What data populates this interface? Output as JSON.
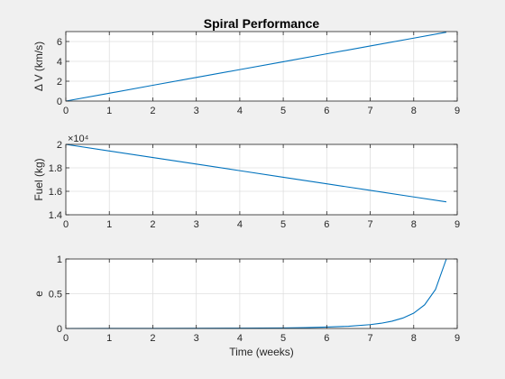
{
  "figure": {
    "background_color": "#f0f0f0",
    "axes_color": "#ffffff",
    "line_color": "#0072bd",
    "grid_color": "#dfdfdf"
  },
  "chart_data": [
    {
      "type": "line",
      "title": "Spiral Performance",
      "xlabel": "",
      "ylabel": "Δ V (km/s)",
      "xlim": [
        0,
        9
      ],
      "ylim": [
        0,
        7
      ],
      "xticks": [
        0,
        1,
        2,
        3,
        4,
        5,
        6,
        7,
        8,
        9
      ],
      "yticks": [
        0,
        2,
        4,
        6
      ],
      "ytick_labels": [
        "0",
        "2",
        "4",
        "6"
      ],
      "exponent_label": "",
      "grid": true,
      "series": [
        {
          "x": [
            0,
            1,
            2,
            3,
            4,
            5,
            6,
            7,
            8,
            8.75
          ],
          "y": [
            0,
            0.79,
            1.59,
            2.38,
            3.17,
            3.96,
            4.76,
            5.55,
            6.34,
            6.94
          ]
        }
      ]
    },
    {
      "type": "line",
      "title": "",
      "xlabel": "",
      "ylabel": "Fuel (kg)",
      "xlim": [
        0,
        9
      ],
      "ylim": [
        1.4,
        2.0
      ],
      "xticks": [
        0,
        1,
        2,
        3,
        4,
        5,
        6,
        7,
        8,
        9
      ],
      "yticks": [
        1.4,
        1.6,
        1.8,
        2.0
      ],
      "ytick_labels": [
        "1.4",
        "1.6",
        "1.8",
        "2"
      ],
      "exponent_label": "×10⁴",
      "grid": true,
      "series": [
        {
          "x": [
            0,
            1,
            2,
            3,
            4,
            5,
            6,
            7,
            8,
            8.75
          ],
          "y": [
            2.0,
            1.944,
            1.888,
            1.832,
            1.776,
            1.72,
            1.664,
            1.608,
            1.552,
            1.51
          ]
        }
      ]
    },
    {
      "type": "line",
      "title": "",
      "xlabel": "Time (weeks)",
      "ylabel": "e",
      "xlim": [
        0,
        9
      ],
      "ylim": [
        0,
        1
      ],
      "xticks": [
        0,
        1,
        2,
        3,
        4,
        5,
        6,
        7,
        8,
        9
      ],
      "yticks": [
        0,
        0.5,
        1
      ],
      "ytick_labels": [
        "0",
        "0.5",
        "1"
      ],
      "exponent_label": "",
      "grid": true,
      "series": [
        {
          "x": [
            0,
            1,
            2,
            3,
            4,
            5,
            5.5,
            6,
            6.5,
            7,
            7.25,
            7.5,
            7.75,
            8,
            8.25,
            8.5,
            8.75
          ],
          "y": [
            0,
            0.0005,
            0.001,
            0.002,
            0.004,
            0.008,
            0.012,
            0.02,
            0.032,
            0.055,
            0.075,
            0.105,
            0.15,
            0.22,
            0.34,
            0.56,
            1.0
          ]
        }
      ]
    }
  ]
}
